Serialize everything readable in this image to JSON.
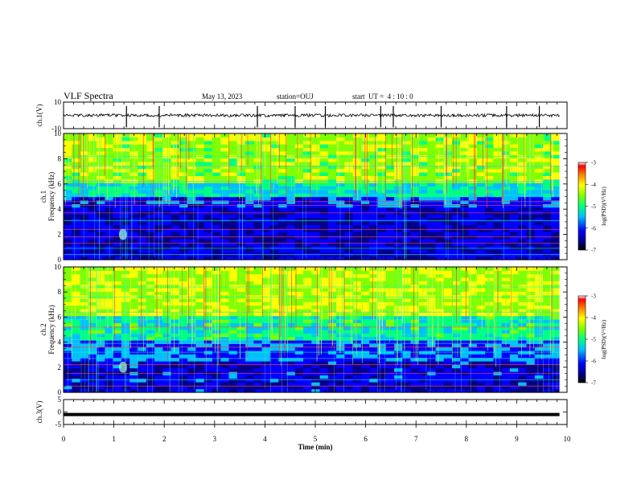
{
  "header": {
    "title": "VLF Spectra",
    "date": "May 13, 2023",
    "station": "station=OUJ",
    "start_ut": "start  UT =  4 : 10 : 0"
  },
  "colors": {
    "waveform": "#000000",
    "colormap": [
      "#000000",
      "#00008b",
      "#0000ff",
      "#00bfff",
      "#00ff80",
      "#80ff00",
      "#ffff00",
      "#ff8000",
      "#ff0000",
      "#ffffff"
    ]
  },
  "chart_data": [
    {
      "type": "line",
      "name": "ch1-waveform",
      "ylabel": "ch.1(V)",
      "ylim": [
        -10,
        10
      ],
      "yticks": [
        "10",
        "-10"
      ],
      "xlim": [
        0,
        10
      ],
      "baseline": 0,
      "spike_times_min": [
        1.25,
        1.9,
        3.85,
        4.6,
        5.2,
        6.3,
        6.55,
        7.5,
        8.8,
        9.45
      ]
    },
    {
      "type": "heatmap",
      "name": "ch1-spectrogram",
      "ylabel_lines": [
        "ch.1",
        "Frequency (kHz)"
      ],
      "ylim": [
        0,
        10
      ],
      "yticks": [
        "0",
        "2",
        "4",
        "6",
        "8",
        "10"
      ],
      "xlim": [
        0,
        10
      ],
      "colorbar": {
        "label": "log(PSD)(V²/Hz)",
        "range": [
          -7,
          -3
        ],
        "ticks": [
          "-3",
          "-4",
          "-5",
          "-6",
          "-7"
        ]
      }
    },
    {
      "type": "heatmap",
      "name": "ch2-spectrogram",
      "ylabel_lines": [
        "ch.2",
        "Frequency (kHz)"
      ],
      "ylim": [
        0,
        10
      ],
      "yticks": [
        "0",
        "2",
        "4",
        "6",
        "8",
        "10"
      ],
      "xlim": [
        0,
        10
      ],
      "colorbar": {
        "label": "log(PSD)(V²/Hz)",
        "range": [
          -7,
          -3
        ],
        "ticks": [
          "-3",
          "-4",
          "-5",
          "-6",
          "-7"
        ]
      }
    },
    {
      "type": "line",
      "name": "ch3-waveform",
      "ylabel": "ch.3(V)",
      "ylim": [
        -5,
        5
      ],
      "yticks": [
        "5",
        "0",
        "-5"
      ],
      "xlim": [
        0,
        10
      ],
      "baseline": -1,
      "xlabel": "Time  (min)",
      "xticks": [
        "0",
        "1",
        "2",
        "3",
        "4",
        "5",
        "6",
        "7",
        "8",
        "9",
        "10"
      ]
    }
  ]
}
